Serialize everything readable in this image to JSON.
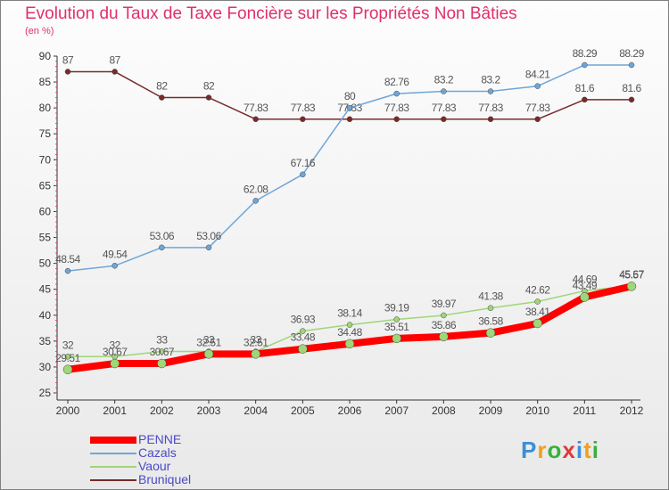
{
  "title": "Evolution du Taux de Taxe Foncière sur les Propriétés Non Bâties",
  "subtitle": "(en %)",
  "logo": "Proxiti",
  "chart_data": {
    "type": "line",
    "x": [
      "2000",
      "2001",
      "2002",
      "2003",
      "2004",
      "2005",
      "2006",
      "2007",
      "2008",
      "2009",
      "2010",
      "2011",
      "2012"
    ],
    "ylim": [
      25,
      90
    ],
    "yticks": [
      25,
      30,
      35,
      40,
      45,
      50,
      55,
      60,
      65,
      70,
      75,
      80,
      85,
      90
    ],
    "grid": false,
    "legend": "bottom-left",
    "series": [
      {
        "name": "Bruniquel",
        "color": "#7a2a2a",
        "label_color": "#555555",
        "width": 1.5,
        "values": [
          87,
          87,
          82,
          82,
          77.83,
          77.83,
          77.83,
          77.83,
          77.83,
          77.83,
          77.83,
          81.6,
          81.6
        ],
        "labels": [
          "87",
          "87",
          "82",
          "82",
          "77.83",
          "77.83",
          "77.83",
          "77.83",
          "77.83",
          "77.83",
          "77.83",
          "81.6",
          "81.6"
        ]
      },
      {
        "name": "Cazals",
        "color": "#6ea6d8",
        "label_color": "#555555",
        "width": 1.5,
        "values": [
          48.54,
          49.54,
          53.06,
          53.06,
          62.08,
          67.16,
          80,
          82.76,
          83.2,
          83.2,
          84.21,
          88.29,
          88.29
        ],
        "labels": [
          "48.54",
          "49.54",
          "53.06",
          "53.06",
          "62.08",
          "67.16",
          "80",
          "82.76",
          "83.2",
          "83.2",
          "84.21",
          "88.29",
          "88.29"
        ]
      },
      {
        "name": "Vaour",
        "color": "#9ed678",
        "label_color": "#555555",
        "width": 1.5,
        "values": [
          32,
          32,
          33,
          33,
          33,
          36.93,
          38.14,
          39.19,
          39.97,
          41.38,
          42.62,
          44.69,
          45.67
        ],
        "labels": [
          "32",
          "32",
          "33",
          "33",
          "33",
          "36.93",
          "38.14",
          "39.19",
          "39.97",
          "41.38",
          "42.62",
          "44.69",
          "45.67"
        ]
      },
      {
        "name": "PENNE",
        "color": "#ff0000",
        "label_color": "#555555",
        "width": 8,
        "values": [
          29.51,
          30.67,
          30.67,
          32.51,
          32.51,
          33.48,
          34.48,
          35.51,
          35.86,
          36.58,
          38.41,
          43.49,
          45.57
        ],
        "labels": [
          "29.51",
          "30.67",
          "30.67",
          "32.51",
          "32.51",
          "33.48",
          "34.48",
          "35.51",
          "35.86",
          "36.58",
          "38.41",
          "43.49",
          "45.57"
        ]
      }
    ]
  },
  "legend_items": [
    {
      "name": "PENNE",
      "color": "#ff0000",
      "width": 8
    },
    {
      "name": "Cazals",
      "color": "#6ea6d8",
      "width": 2
    },
    {
      "name": "Vaour",
      "color": "#9ed678",
      "width": 2
    },
    {
      "name": "Bruniquel",
      "color": "#7a2a2a",
      "width": 2
    }
  ]
}
